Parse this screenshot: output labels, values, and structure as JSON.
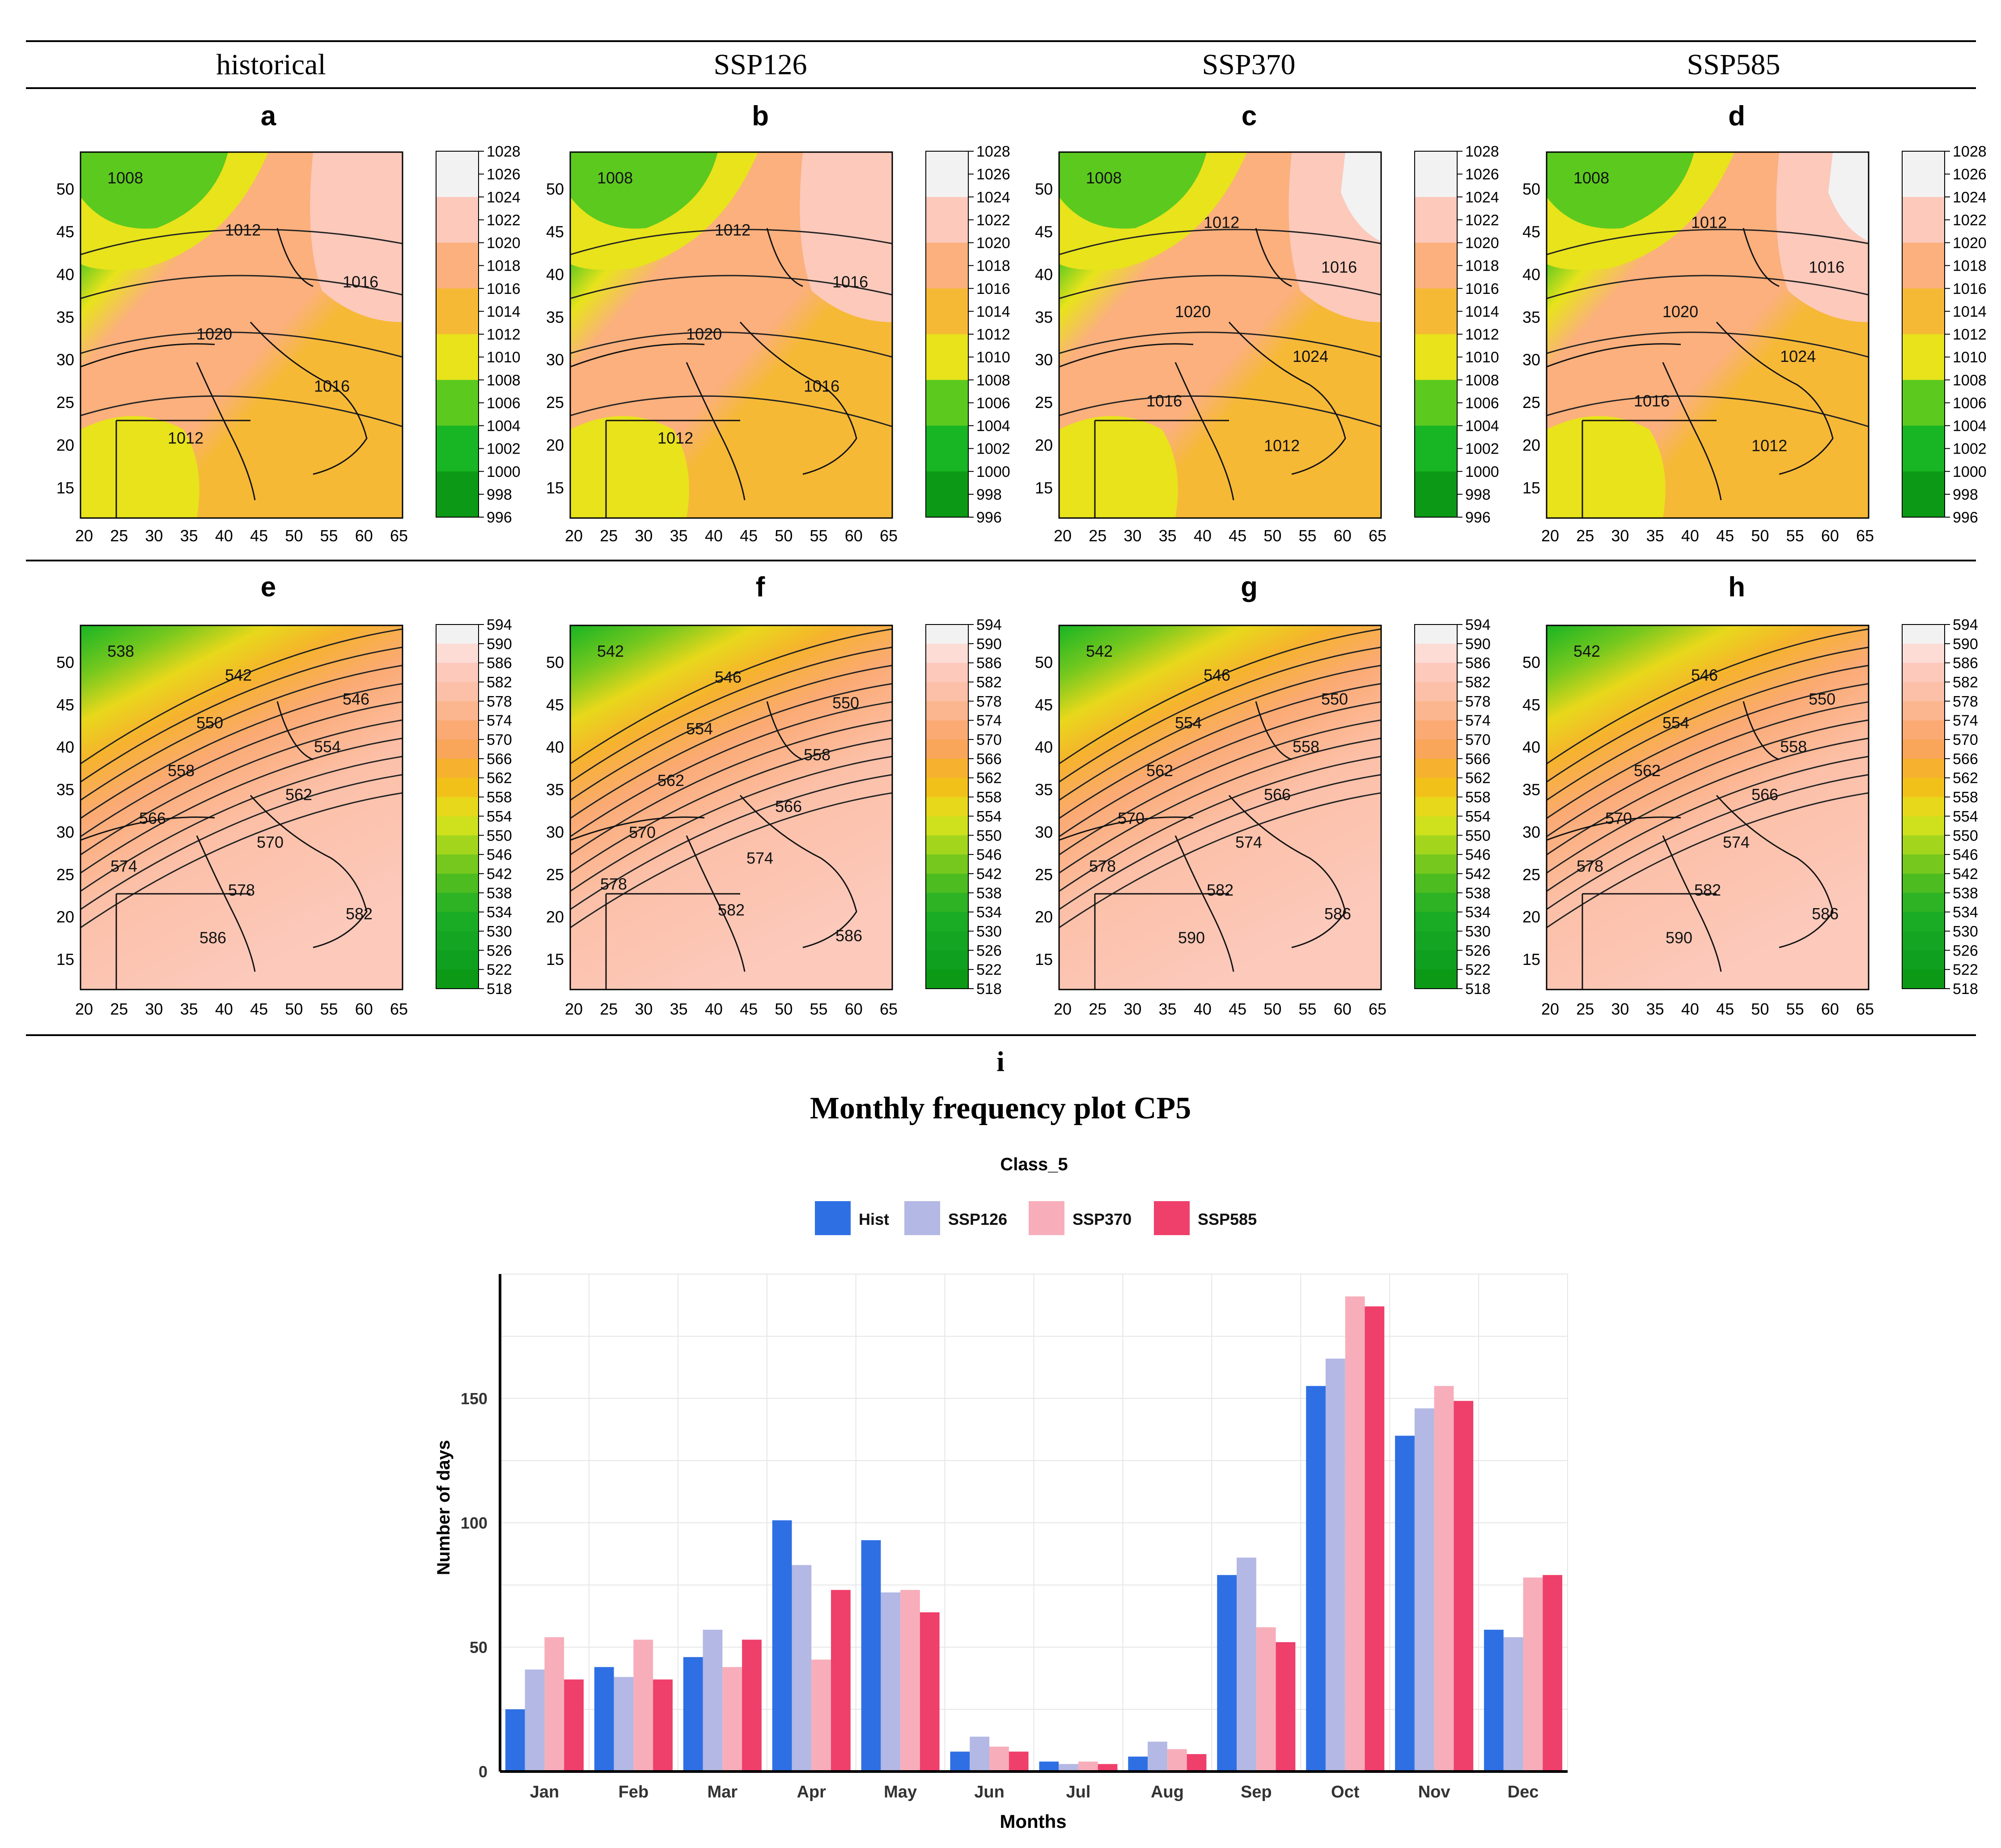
{
  "header": {
    "columns": [
      "historical",
      "SSP126",
      "SSP370",
      "SSP585"
    ]
  },
  "maps": {
    "row1": {
      "panels": [
        {
          "letter": "a",
          "contour_labels": [
            "1008",
            "1012",
            "1016",
            "1020",
            "1016",
            "1012"
          ]
        },
        {
          "letter": "b",
          "contour_labels": [
            "1008",
            "1012",
            "1016",
            "1020",
            "1016",
            "1012"
          ]
        },
        {
          "letter": "c",
          "contour_labels": [
            "1008",
            "1012",
            "1016",
            "1020",
            "1024",
            "1016",
            "1012"
          ]
        },
        {
          "letter": "d",
          "contour_labels": [
            "1008",
            "1012",
            "1016",
            "1020",
            "1024",
            "1016",
            "1012"
          ]
        }
      ],
      "colorbar_ticks": [
        "1028",
        "1026",
        "1024",
        "1022",
        "1020",
        "1018",
        "1016",
        "1014",
        "1012",
        "1010",
        "1008",
        "1006",
        "1004",
        "1002",
        "1000",
        "998",
        "996"
      ],
      "colorbar_colors": [
        "#f2f2f2",
        "#f2f2f2",
        "#fcc9bb",
        "#fcc9bb",
        "#fbb07d",
        "#fbb07d",
        "#f6b936",
        "#f6b936",
        "#e8e31b",
        "#e8e31b",
        "#5cc91f",
        "#5cc91f",
        "#18b524",
        "#18b524",
        "#0c9a16",
        "#0c9a16"
      ]
    },
    "row2": {
      "panels": [
        {
          "letter": "e",
          "contour_labels": [
            "538",
            "542",
            "546",
            "550",
            "554",
            "558",
            "562",
            "566",
            "570",
            "574",
            "578",
            "582",
            "586"
          ]
        },
        {
          "letter": "f",
          "contour_labels": [
            "542",
            "546",
            "550",
            "554",
            "558",
            "562",
            "566",
            "570",
            "574",
            "578",
            "582",
            "586"
          ]
        },
        {
          "letter": "g",
          "contour_labels": [
            "542",
            "546",
            "550",
            "554",
            "558",
            "562",
            "566",
            "570",
            "574",
            "578",
            "582",
            "586",
            "590"
          ]
        },
        {
          "letter": "h",
          "contour_labels": [
            "542",
            "546",
            "550",
            "554",
            "558",
            "562",
            "566",
            "570",
            "574",
            "578",
            "582",
            "586",
            "590"
          ]
        }
      ],
      "colorbar_ticks": [
        "594",
        "590",
        "586",
        "582",
        "578",
        "574",
        "570",
        "566",
        "562",
        "558",
        "554",
        "550",
        "546",
        "542",
        "538",
        "534",
        "530",
        "526",
        "522",
        "518"
      ],
      "colorbar_colors": [
        "#f2f2f2",
        "#fddcd6",
        "#fcc9bb",
        "#fcc0a8",
        "#fbb68f",
        "#fbaa74",
        "#f9a55a",
        "#f6b22e",
        "#f1c11a",
        "#e8d81b",
        "#cfe01d",
        "#a3d51d",
        "#76c81e",
        "#4cbc20",
        "#2db324",
        "#1aac25",
        "#14a623",
        "#10a020",
        "#0c9a16"
      ]
    },
    "x_ticks": [
      "20",
      "25",
      "30",
      "35",
      "40",
      "45",
      "50",
      "55",
      "60",
      "65"
    ],
    "y_ticks": [
      "50",
      "45",
      "40",
      "35",
      "30",
      "25",
      "20",
      "15"
    ]
  },
  "chart_panel": {
    "letter": "i",
    "title": "Monthly frequency plot CP5",
    "subtitle": "Class_5"
  },
  "chart_data": {
    "type": "bar",
    "title": "Monthly frequency plot CP5",
    "subtitle": "Class_5",
    "xlabel": "Months",
    "ylabel": "Number of days",
    "categories": [
      "Jan",
      "Feb",
      "Mar",
      "Apr",
      "May",
      "Jun",
      "Jul",
      "Aug",
      "Sep",
      "Oct",
      "Nov",
      "Dec"
    ],
    "series": [
      {
        "name": "Hist",
        "color": "#2f6fe4",
        "values": [
          25,
          42,
          46,
          101,
          93,
          8,
          4,
          6,
          79,
          155,
          135,
          57
        ]
      },
      {
        "name": "SSP126",
        "color": "#b3b8e4",
        "values": [
          41,
          38,
          57,
          83,
          72,
          14,
          3,
          12,
          86,
          166,
          146,
          54
        ]
      },
      {
        "name": "SSP370",
        "color": "#f7aeba",
        "values": [
          54,
          53,
          42,
          45,
          73,
          10,
          4,
          9,
          58,
          191,
          155,
          78
        ]
      },
      {
        "name": "SSP585",
        "color": "#ef3f6b",
        "values": [
          37,
          37,
          53,
          73,
          64,
          8,
          3,
          7,
          52,
          187,
          149,
          79
        ]
      }
    ],
    "yticks": [
      0,
      50,
      100,
      150
    ],
    "ylim": [
      0,
      200
    ],
    "grid": true,
    "legend_position": "top"
  }
}
